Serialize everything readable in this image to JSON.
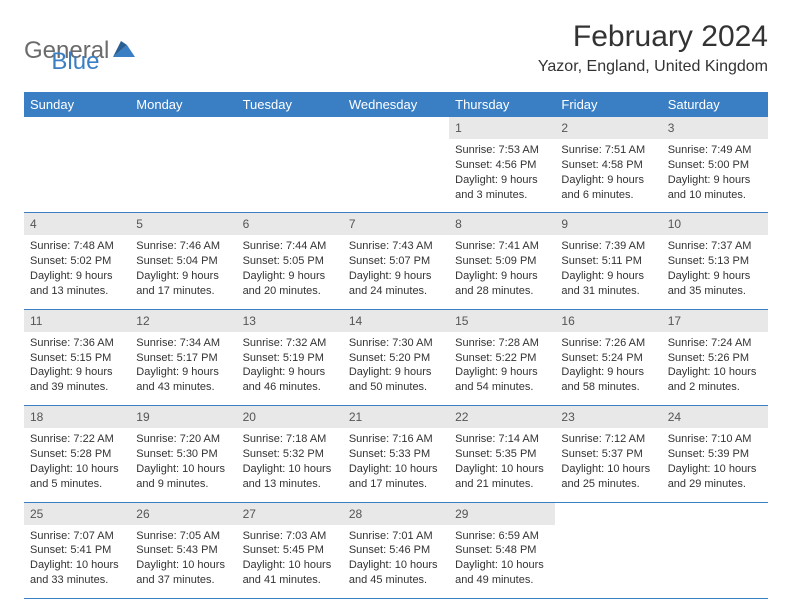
{
  "logo": {
    "text1": "General",
    "text2": "Blue",
    "text1_color": "#6b6b6b",
    "text2_color": "#3a7fc4"
  },
  "title": "February 2024",
  "location": "Yazor, England, United Kingdom",
  "colors": {
    "header_bg": "#3a7fc4",
    "header_text": "#ffffff",
    "daynum_bg": "#e8e8e8",
    "border": "#3a7fc4",
    "body_text": "#333333"
  },
  "day_headers": [
    "Sunday",
    "Monday",
    "Tuesday",
    "Wednesday",
    "Thursday",
    "Friday",
    "Saturday"
  ],
  "weeks": [
    [
      {
        "day": "",
        "sunrise": "",
        "sunset": "",
        "daylight1": "",
        "daylight2": ""
      },
      {
        "day": "",
        "sunrise": "",
        "sunset": "",
        "daylight1": "",
        "daylight2": ""
      },
      {
        "day": "",
        "sunrise": "",
        "sunset": "",
        "daylight1": "",
        "daylight2": ""
      },
      {
        "day": "",
        "sunrise": "",
        "sunset": "",
        "daylight1": "",
        "daylight2": ""
      },
      {
        "day": "1",
        "sunrise": "Sunrise: 7:53 AM",
        "sunset": "Sunset: 4:56 PM",
        "daylight1": "Daylight: 9 hours",
        "daylight2": "and 3 minutes."
      },
      {
        "day": "2",
        "sunrise": "Sunrise: 7:51 AM",
        "sunset": "Sunset: 4:58 PM",
        "daylight1": "Daylight: 9 hours",
        "daylight2": "and 6 minutes."
      },
      {
        "day": "3",
        "sunrise": "Sunrise: 7:49 AM",
        "sunset": "Sunset: 5:00 PM",
        "daylight1": "Daylight: 9 hours",
        "daylight2": "and 10 minutes."
      }
    ],
    [
      {
        "day": "4",
        "sunrise": "Sunrise: 7:48 AM",
        "sunset": "Sunset: 5:02 PM",
        "daylight1": "Daylight: 9 hours",
        "daylight2": "and 13 minutes."
      },
      {
        "day": "5",
        "sunrise": "Sunrise: 7:46 AM",
        "sunset": "Sunset: 5:04 PM",
        "daylight1": "Daylight: 9 hours",
        "daylight2": "and 17 minutes."
      },
      {
        "day": "6",
        "sunrise": "Sunrise: 7:44 AM",
        "sunset": "Sunset: 5:05 PM",
        "daylight1": "Daylight: 9 hours",
        "daylight2": "and 20 minutes."
      },
      {
        "day": "7",
        "sunrise": "Sunrise: 7:43 AM",
        "sunset": "Sunset: 5:07 PM",
        "daylight1": "Daylight: 9 hours",
        "daylight2": "and 24 minutes."
      },
      {
        "day": "8",
        "sunrise": "Sunrise: 7:41 AM",
        "sunset": "Sunset: 5:09 PM",
        "daylight1": "Daylight: 9 hours",
        "daylight2": "and 28 minutes."
      },
      {
        "day": "9",
        "sunrise": "Sunrise: 7:39 AM",
        "sunset": "Sunset: 5:11 PM",
        "daylight1": "Daylight: 9 hours",
        "daylight2": "and 31 minutes."
      },
      {
        "day": "10",
        "sunrise": "Sunrise: 7:37 AM",
        "sunset": "Sunset: 5:13 PM",
        "daylight1": "Daylight: 9 hours",
        "daylight2": "and 35 minutes."
      }
    ],
    [
      {
        "day": "11",
        "sunrise": "Sunrise: 7:36 AM",
        "sunset": "Sunset: 5:15 PM",
        "daylight1": "Daylight: 9 hours",
        "daylight2": "and 39 minutes."
      },
      {
        "day": "12",
        "sunrise": "Sunrise: 7:34 AM",
        "sunset": "Sunset: 5:17 PM",
        "daylight1": "Daylight: 9 hours",
        "daylight2": "and 43 minutes."
      },
      {
        "day": "13",
        "sunrise": "Sunrise: 7:32 AM",
        "sunset": "Sunset: 5:19 PM",
        "daylight1": "Daylight: 9 hours",
        "daylight2": "and 46 minutes."
      },
      {
        "day": "14",
        "sunrise": "Sunrise: 7:30 AM",
        "sunset": "Sunset: 5:20 PM",
        "daylight1": "Daylight: 9 hours",
        "daylight2": "and 50 minutes."
      },
      {
        "day": "15",
        "sunrise": "Sunrise: 7:28 AM",
        "sunset": "Sunset: 5:22 PM",
        "daylight1": "Daylight: 9 hours",
        "daylight2": "and 54 minutes."
      },
      {
        "day": "16",
        "sunrise": "Sunrise: 7:26 AM",
        "sunset": "Sunset: 5:24 PM",
        "daylight1": "Daylight: 9 hours",
        "daylight2": "and 58 minutes."
      },
      {
        "day": "17",
        "sunrise": "Sunrise: 7:24 AM",
        "sunset": "Sunset: 5:26 PM",
        "daylight1": "Daylight: 10 hours",
        "daylight2": "and 2 minutes."
      }
    ],
    [
      {
        "day": "18",
        "sunrise": "Sunrise: 7:22 AM",
        "sunset": "Sunset: 5:28 PM",
        "daylight1": "Daylight: 10 hours",
        "daylight2": "and 5 minutes."
      },
      {
        "day": "19",
        "sunrise": "Sunrise: 7:20 AM",
        "sunset": "Sunset: 5:30 PM",
        "daylight1": "Daylight: 10 hours",
        "daylight2": "and 9 minutes."
      },
      {
        "day": "20",
        "sunrise": "Sunrise: 7:18 AM",
        "sunset": "Sunset: 5:32 PM",
        "daylight1": "Daylight: 10 hours",
        "daylight2": "and 13 minutes."
      },
      {
        "day": "21",
        "sunrise": "Sunrise: 7:16 AM",
        "sunset": "Sunset: 5:33 PM",
        "daylight1": "Daylight: 10 hours",
        "daylight2": "and 17 minutes."
      },
      {
        "day": "22",
        "sunrise": "Sunrise: 7:14 AM",
        "sunset": "Sunset: 5:35 PM",
        "daylight1": "Daylight: 10 hours",
        "daylight2": "and 21 minutes."
      },
      {
        "day": "23",
        "sunrise": "Sunrise: 7:12 AM",
        "sunset": "Sunset: 5:37 PM",
        "daylight1": "Daylight: 10 hours",
        "daylight2": "and 25 minutes."
      },
      {
        "day": "24",
        "sunrise": "Sunrise: 7:10 AM",
        "sunset": "Sunset: 5:39 PM",
        "daylight1": "Daylight: 10 hours",
        "daylight2": "and 29 minutes."
      }
    ],
    [
      {
        "day": "25",
        "sunrise": "Sunrise: 7:07 AM",
        "sunset": "Sunset: 5:41 PM",
        "daylight1": "Daylight: 10 hours",
        "daylight2": "and 33 minutes."
      },
      {
        "day": "26",
        "sunrise": "Sunrise: 7:05 AM",
        "sunset": "Sunset: 5:43 PM",
        "daylight1": "Daylight: 10 hours",
        "daylight2": "and 37 minutes."
      },
      {
        "day": "27",
        "sunrise": "Sunrise: 7:03 AM",
        "sunset": "Sunset: 5:45 PM",
        "daylight1": "Daylight: 10 hours",
        "daylight2": "and 41 minutes."
      },
      {
        "day": "28",
        "sunrise": "Sunrise: 7:01 AM",
        "sunset": "Sunset: 5:46 PM",
        "daylight1": "Daylight: 10 hours",
        "daylight2": "and 45 minutes."
      },
      {
        "day": "29",
        "sunrise": "Sunrise: 6:59 AM",
        "sunset": "Sunset: 5:48 PM",
        "daylight1": "Daylight: 10 hours",
        "daylight2": "and 49 minutes."
      },
      {
        "day": "",
        "sunrise": "",
        "sunset": "",
        "daylight1": "",
        "daylight2": ""
      },
      {
        "day": "",
        "sunrise": "",
        "sunset": "",
        "daylight1": "",
        "daylight2": ""
      }
    ]
  ]
}
